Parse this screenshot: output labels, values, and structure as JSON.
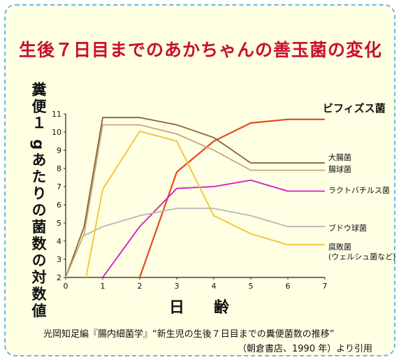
{
  "title": "生後７日目までのあかちゃんの善玉菌の変化",
  "citation": {
    "line1": "光岡知足編『腸内細菌学』“新生児の生後７日目までの糞便菌数の推移”",
    "line2": "（朝倉書店、1990 年）より引用"
  },
  "chart_data": {
    "type": "line",
    "title": "生後７日目までのあかちゃんの善玉菌の変化",
    "xlabel": "日　齢",
    "ylabel": "糞便１ gあたりの菌数の対数値",
    "xlim": [
      0,
      7
    ],
    "ylim": [
      2,
      11
    ],
    "x_ticks": [
      0,
      1,
      2,
      3,
      4,
      5,
      6,
      7
    ],
    "y_ticks": [
      2,
      3,
      4,
      5,
      6,
      7,
      8,
      9,
      10,
      11
    ],
    "grid": false,
    "series": [
      {
        "name": "ビフィズス菌",
        "color": "#e8491d",
        "x": [
          2,
          3,
          4,
          5,
          6,
          7
        ],
        "y": [
          2.0,
          7.8,
          9.5,
          10.5,
          10.7,
          10.7
        ]
      },
      {
        "name": "大腸菌",
        "color": "#8b6236",
        "x": [
          0,
          0.5,
          1,
          2,
          3,
          4,
          5,
          6,
          7
        ],
        "y": [
          2.0,
          4.8,
          10.8,
          10.8,
          10.4,
          9.7,
          8.3,
          8.3,
          8.3
        ]
      },
      {
        "name": "腸球菌",
        "color": "#c9a77a",
        "x": [
          0,
          0.5,
          1,
          2,
          3,
          4,
          5,
          6,
          7
        ],
        "y": [
          2.0,
          4.4,
          10.4,
          10.4,
          9.9,
          9.0,
          7.9,
          7.9,
          7.9
        ]
      },
      {
        "name": "ラクトバチルス菌",
        "color": "#d41ac2",
        "x": [
          1,
          2,
          3,
          4,
          5,
          6,
          7
        ],
        "y": [
          2.0,
          4.8,
          6.9,
          7.0,
          7.35,
          6.75,
          6.75
        ]
      },
      {
        "name": "ブドウ球菌",
        "color": "#b7b7b7",
        "x": [
          0.5,
          1,
          2,
          3,
          4,
          5,
          6,
          7
        ],
        "y": [
          4.3,
          4.8,
          5.4,
          5.8,
          5.8,
          5.4,
          4.8,
          4.8
        ]
      },
      {
        "name": "腐敗菌\n(ウェルシュ菌など)",
        "color": "#f2c230",
        "x": [
          0.55,
          1,
          2,
          3,
          4,
          5,
          6,
          7
        ],
        "y": [
          2.0,
          6.85,
          10.05,
          9.5,
          5.4,
          4.4,
          3.8,
          3.8
        ]
      }
    ]
  }
}
